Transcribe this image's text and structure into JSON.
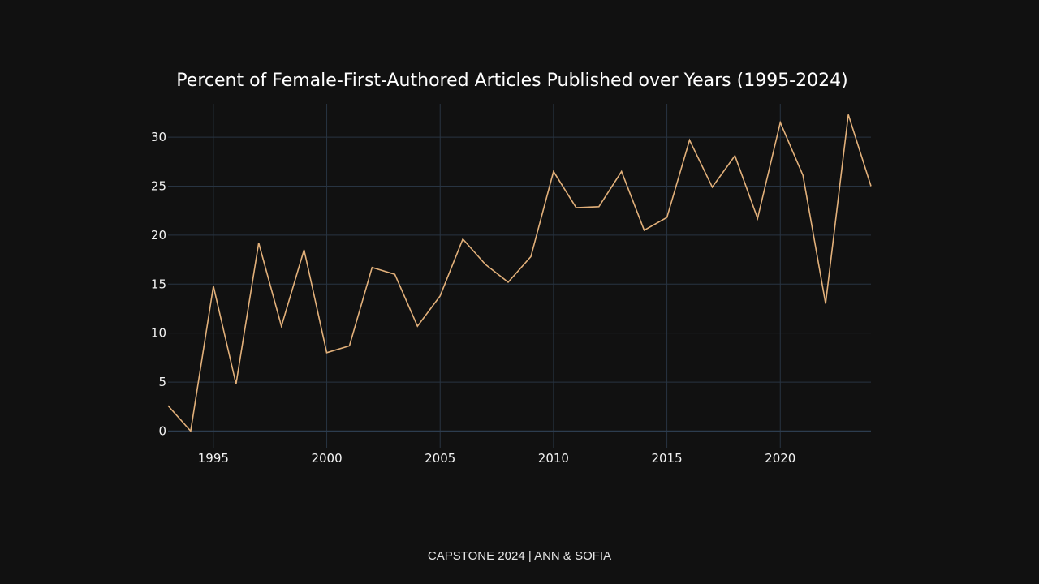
{
  "chart_data": {
    "type": "line",
    "title": "Percent of Female-First-Authored Articles Published over Years (1995-2024)",
    "xlabel": "",
    "ylabel": "",
    "xlim": [
      1993,
      2024
    ],
    "ylim": [
      -1.7,
      33.4
    ],
    "x_ticks": [
      1995,
      2000,
      2005,
      2010,
      2015,
      2020
    ],
    "y_ticks": [
      0,
      5,
      10,
      15,
      20,
      25,
      30
    ],
    "grid": true,
    "line_color": "#e2b07a",
    "grid_color": "#283442",
    "background": "#111111",
    "x": [
      1993,
      1994,
      1995,
      1996,
      1997,
      1998,
      1999,
      2000,
      2001,
      2002,
      2003,
      2004,
      2005,
      2006,
      2007,
      2008,
      2009,
      2010,
      2011,
      2012,
      2013,
      2014,
      2015,
      2016,
      2017,
      2018,
      2019,
      2020,
      2021,
      2022,
      2023,
      2024
    ],
    "y": [
      2.6,
      0,
      14.8,
      4.8,
      19.2,
      10.7,
      18.5,
      8.0,
      8.7,
      16.7,
      16.0,
      10.7,
      13.8,
      19.6,
      17.0,
      15.2,
      17.8,
      26.5,
      22.8,
      22.9,
      26.5,
      20.5,
      21.8,
      29.7,
      24.9,
      28.1,
      21.7,
      31.5,
      26.1,
      13.0,
      32.3,
      25.0
    ]
  },
  "footer": {
    "text": "CAPSTONE 2024 | ANN & SOFIA"
  }
}
